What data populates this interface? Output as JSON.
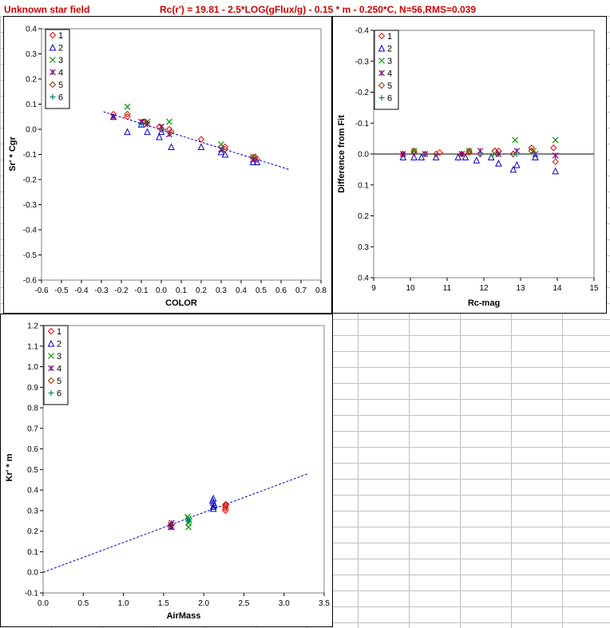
{
  "header": {
    "title": "Unknown star field",
    "formula": "Rc(r') = 19.81 - 2.5*LOG(gFlux/g) - 0.15 * m - 0.250*C, N=56,RMS=0.039"
  },
  "colors": {
    "s1": "#ff0000",
    "s2": "#0000cc",
    "s3": "#009900",
    "s4": "#800080",
    "s5": "#993300",
    "s6": "#008080",
    "fit": "#0000cc"
  },
  "chart_data": [
    {
      "type": "scatter",
      "xlabel": "COLOR",
      "ylabel": "Sr' * Cgr",
      "xlim": [
        -0.6,
        0.8
      ],
      "ylim": [
        -0.6,
        0.4
      ],
      "xticks": [
        "-0.6",
        "-0.5",
        "-0.4",
        "-0.3",
        "-0.2",
        "-0.1",
        "0.0",
        "0.1",
        "0.2",
        "0.3",
        "0.4",
        "0.5",
        "0.6",
        "0.7",
        "0.8"
      ],
      "yticks": [
        "0.4",
        "0.3",
        "0.2",
        "0.1",
        "0.0",
        "-0.1",
        "-0.2",
        "-0.3",
        "-0.4",
        "-0.5",
        "-0.6"
      ],
      "fit_line": [
        [
          -0.29,
          0.07
        ],
        [
          0.64,
          -0.16
        ]
      ],
      "series": [
        {
          "name": "1",
          "marker": "diamond",
          "color": "s1",
          "points": [
            [
              -0.24,
              0.06
            ],
            [
              -0.17,
              0.05
            ],
            [
              -0.09,
              0.03
            ],
            [
              -0.01,
              0.01
            ],
            [
              0.04,
              0.0
            ],
            [
              0.2,
              -0.04
            ],
            [
              0.3,
              -0.07
            ],
            [
              0.32,
              -0.07
            ],
            [
              0.46,
              -0.11
            ],
            [
              0.48,
              -0.12
            ]
          ]
        },
        {
          "name": "2",
          "marker": "triangle",
          "color": "s2",
          "points": [
            [
              -0.24,
              0.05
            ],
            [
              -0.17,
              -0.01
            ],
            [
              -0.1,
              0.02
            ],
            [
              -0.07,
              -0.01
            ],
            [
              -0.01,
              -0.03
            ],
            [
              0.0,
              -0.01
            ],
            [
              0.05,
              -0.07
            ],
            [
              0.2,
              -0.07
            ],
            [
              0.3,
              -0.09
            ],
            [
              0.32,
              -0.1
            ],
            [
              0.46,
              -0.13
            ],
            [
              0.48,
              -0.13
            ]
          ]
        },
        {
          "name": "3",
          "marker": "x",
          "color": "s3",
          "points": [
            [
              -0.17,
              0.09
            ],
            [
              -0.07,
              0.03
            ],
            [
              0.04,
              0.03
            ],
            [
              0.3,
              -0.06
            ],
            [
              0.46,
              -0.11
            ]
          ]
        },
        {
          "name": "4",
          "marker": "star",
          "color": "s4",
          "points": [
            [
              -0.24,
              0.05
            ],
            [
              -0.1,
              0.03
            ],
            [
              -0.07,
              0.02
            ],
            [
              0.0,
              0.01
            ],
            [
              0.04,
              -0.02
            ],
            [
              0.3,
              -0.08
            ],
            [
              0.46,
              -0.12
            ]
          ]
        },
        {
          "name": "5",
          "marker": "diamond",
          "color": "s5",
          "points": [
            [
              -0.17,
              0.06
            ],
            [
              -0.08,
              0.03
            ],
            [
              0.0,
              0.0
            ],
            [
              0.05,
              -0.01
            ],
            [
              0.32,
              -0.08
            ],
            [
              0.47,
              -0.11
            ]
          ]
        },
        {
          "name": "6",
          "marker": "plus",
          "color": "s6",
          "points": [
            [
              -0.1,
              0.02
            ],
            [
              0.01,
              0.0
            ],
            [
              0.31,
              -0.08
            ]
          ]
        }
      ]
    },
    {
      "type": "scatter",
      "xlabel": "Rc-mag",
      "ylabel": "Difference from Fit",
      "xlim": [
        9,
        15
      ],
      "ylim": [
        0.4,
        -0.4
      ],
      "xticks": [
        "9",
        "10",
        "11",
        "12",
        "13",
        "14",
        "15"
      ],
      "yticks": [
        "-0.4",
        "-0.3",
        "-0.2",
        "-0.1",
        "0.0",
        "0.1",
        "0.2",
        "0.3",
        "0.4"
      ],
      "zero_line": true,
      "series": [
        {
          "name": "1",
          "marker": "diamond",
          "color": "s1",
          "points": [
            [
              9.8,
              0.0
            ],
            [
              10.1,
              -0.005
            ],
            [
              10.4,
              0.0
            ],
            [
              10.8,
              -0.005
            ],
            [
              11.4,
              0.0
            ],
            [
              11.6,
              -0.005
            ],
            [
              11.9,
              0.0
            ],
            [
              12.3,
              -0.01
            ],
            [
              12.4,
              -0.01
            ],
            [
              12.8,
              0.0
            ],
            [
              13.3,
              -0.02
            ],
            [
              13.9,
              -0.02
            ],
            [
              13.95,
              0.025
            ]
          ]
        },
        {
          "name": "2",
          "marker": "triangle",
          "color": "s2",
          "points": [
            [
              9.8,
              0.01
            ],
            [
              10.1,
              0.01
            ],
            [
              10.3,
              0.01
            ],
            [
              10.7,
              0.01
            ],
            [
              11.3,
              0.01
            ],
            [
              11.5,
              0.01
            ],
            [
              11.8,
              0.02
            ],
            [
              12.2,
              0.01
            ],
            [
              12.4,
              0.03
            ],
            [
              12.8,
              0.05
            ],
            [
              12.9,
              0.035
            ],
            [
              13.4,
              0.01
            ],
            [
              13.95,
              0.055
            ]
          ]
        },
        {
          "name": "3",
          "marker": "x",
          "color": "s3",
          "points": [
            [
              10.1,
              -0.01
            ],
            [
              11.6,
              -0.01
            ],
            [
              12.3,
              0.0
            ],
            [
              12.85,
              -0.045
            ],
            [
              13.35,
              -0.01
            ],
            [
              13.95,
              -0.045
            ]
          ]
        },
        {
          "name": "4",
          "marker": "star",
          "color": "s4",
          "points": [
            [
              9.8,
              0.0
            ],
            [
              10.4,
              0.0
            ],
            [
              11.4,
              0.0
            ],
            [
              11.9,
              -0.01
            ],
            [
              12.4,
              0.0
            ],
            [
              12.9,
              -0.01
            ],
            [
              13.4,
              0.0
            ],
            [
              13.95,
              0.005
            ]
          ]
        },
        {
          "name": "5",
          "marker": "diamond",
          "color": "s5",
          "points": [
            [
              10.1,
              -0.01
            ],
            [
              10.7,
              0.0
            ],
            [
              11.6,
              -0.01
            ],
            [
              12.3,
              -0.01
            ],
            [
              12.8,
              0.0
            ],
            [
              13.3,
              -0.01
            ]
          ]
        },
        {
          "name": "6",
          "marker": "plus",
          "color": "s6",
          "points": [
            [
              10.4,
              0.0
            ],
            [
              11.9,
              0.0
            ],
            [
              12.9,
              0.0
            ],
            [
              13.4,
              0.0
            ]
          ]
        }
      ]
    },
    {
      "type": "scatter",
      "xlabel": "AirMass",
      "ylabel": "Kr' * m",
      "xlim": [
        0,
        3.5
      ],
      "ylim": [
        -0.1,
        1.2
      ],
      "xticks": [
        "0.0",
        "0.5",
        "1.0",
        "1.5",
        "2.0",
        "2.5",
        "3.0",
        "3.5"
      ],
      "yticks": [
        "1.2",
        "1.1",
        "1.0",
        "0.9",
        "0.8",
        "0.7",
        "0.6",
        "0.5",
        "0.4",
        "0.3",
        "0.2",
        "0.1",
        "0.0",
        "-0.1"
      ],
      "fit_line": [
        [
          0.0,
          0.0
        ],
        [
          3.3,
          0.48
        ]
      ],
      "series": [
        {
          "name": "1",
          "marker": "diamond",
          "color": "s1",
          "points": [
            [
              2.27,
              0.31
            ],
            [
              2.27,
              0.32
            ],
            [
              2.28,
              0.33
            ],
            [
              2.27,
              0.3
            ]
          ]
        },
        {
          "name": "2",
          "marker": "triangle",
          "color": "s2",
          "points": [
            [
              2.12,
              0.32
            ],
            [
              2.12,
              0.34
            ],
            [
              2.12,
              0.36
            ],
            [
              2.12,
              0.31
            ],
            [
              2.13,
              0.33
            ],
            [
              2.11,
              0.35
            ]
          ]
        },
        {
          "name": "3",
          "marker": "x",
          "color": "s3",
          "points": [
            [
              1.81,
              0.26
            ],
            [
              1.81,
              0.24
            ],
            [
              1.81,
              0.22
            ],
            [
              1.8,
              0.27
            ],
            [
              1.82,
              0.25
            ]
          ]
        },
        {
          "name": "4",
          "marker": "star",
          "color": "s4",
          "points": [
            [
              1.59,
              0.23
            ],
            [
              1.59,
              0.22
            ],
            [
              1.6,
              0.24
            ],
            [
              1.6,
              0.22
            ]
          ]
        },
        {
          "name": "5",
          "marker": "diamond",
          "color": "s5",
          "points": [
            [
              1.59,
              0.23
            ],
            [
              2.27,
              0.33
            ]
          ]
        },
        {
          "name": "6",
          "marker": "plus",
          "color": "s6",
          "points": [
            [
              1.8,
              0.26
            ],
            [
              1.81,
              0.25
            ]
          ]
        }
      ]
    }
  ]
}
